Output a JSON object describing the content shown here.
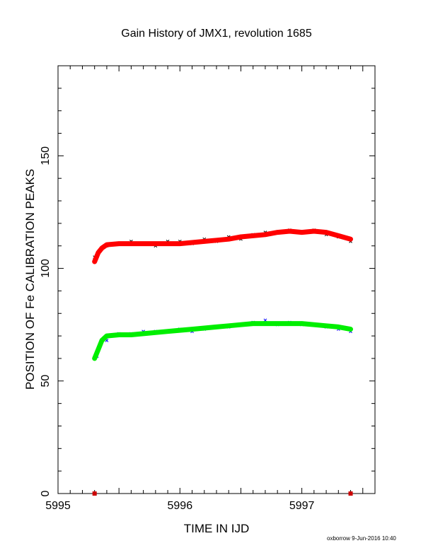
{
  "chart_data": {
    "type": "scatter",
    "title": "Gain History of JMX1, revolution 1685",
    "xlabel": "TIME IN IJD",
    "ylabel": "POSITION OF Fe CALIBRATION PEAKS",
    "xlim": [
      5995,
      5997.6
    ],
    "ylim": [
      0,
      190
    ],
    "x_ticks": [
      5995,
      5996,
      5997
    ],
    "y_ticks": [
      0,
      50,
      100,
      150
    ],
    "grid": false,
    "colors": {
      "upper_points": "#000000",
      "upper_fit": "#ff0000",
      "lower_points": "#0000ff",
      "lower_fit": "#00ee00",
      "marker": "#cc0000"
    },
    "series": [
      {
        "x": [
          5995.3,
          5995.4,
          5995.5,
          5995.6,
          5995.7,
          5995.8,
          5995.9,
          5996.0,
          5996.1,
          5996.2,
          5996.3,
          5996.4,
          5996.5,
          5996.6,
          5996.7,
          5996.8,
          5996.9,
          5997.0,
          5997.1,
          5997.2,
          5997.3,
          5997.4
        ],
        "values": [
          105,
          110,
          111,
          112,
          111,
          110,
          112,
          112,
          111,
          113,
          112,
          114,
          113,
          115,
          116,
          116,
          117,
          116,
          117,
          115,
          114,
          112
        ]
      },
      {
        "x": [
          5995.32,
          5995.4,
          5995.5,
          5995.6,
          5995.7,
          5995.8,
          5995.9,
          5996.0,
          5996.1,
          5996.2,
          5996.3,
          5996.4,
          5996.5,
          5996.6,
          5996.7,
          5996.8,
          5996.9,
          5997.0,
          5997.1,
          5997.2,
          5997.3,
          5997.4
        ],
        "values": [
          61,
          68,
          71,
          71,
          72,
          72,
          72,
          73,
          72,
          73,
          74,
          74,
          75,
          76,
          77,
          75,
          76,
          75,
          75,
          74,
          73,
          72
        ]
      },
      {
        "x": [
          5995.3,
          5995.33,
          5995.36,
          5995.4,
          5995.5,
          5995.6,
          5995.7,
          5995.8,
          5995.9,
          5996.0,
          5996.1,
          5996.2,
          5996.3,
          5996.4,
          5996.5,
          5996.6,
          5996.7,
          5996.8,
          5996.9,
          5997.0,
          5997.1,
          5997.2,
          5997.3,
          5997.4
        ],
        "values": [
          103,
          107,
          109,
          110.5,
          111,
          111,
          111,
          111,
          111,
          111,
          111.5,
          112,
          112.5,
          113,
          114,
          114.5,
          115,
          116,
          116.5,
          116,
          116.5,
          116,
          114.5,
          113
        ]
      },
      {
        "x": [
          5995.3,
          5995.33,
          5995.36,
          5995.4,
          5995.5,
          5995.6,
          5995.7,
          5995.8,
          5995.9,
          5996.0,
          5996.1,
          5996.2,
          5996.3,
          5996.4,
          5996.5,
          5996.6,
          5996.7,
          5996.8,
          5996.9,
          5997.0,
          5997.1,
          5997.2,
          5997.3,
          5997.4
        ],
        "values": [
          60,
          64,
          68,
          70,
          70.5,
          70.5,
          71,
          71.5,
          72,
          72.5,
          73,
          73.5,
          74,
          74.5,
          75,
          75.5,
          75.5,
          75.5,
          75.5,
          75.5,
          75,
          74.5,
          74,
          73
        ]
      }
    ],
    "markers": [
      {
        "x": 5995.3,
        "y": 0
      },
      {
        "x": 5997.4,
        "y": 0
      }
    ]
  },
  "footer": {
    "credit": "oxborrow  9-Jun-2016 10:40"
  }
}
